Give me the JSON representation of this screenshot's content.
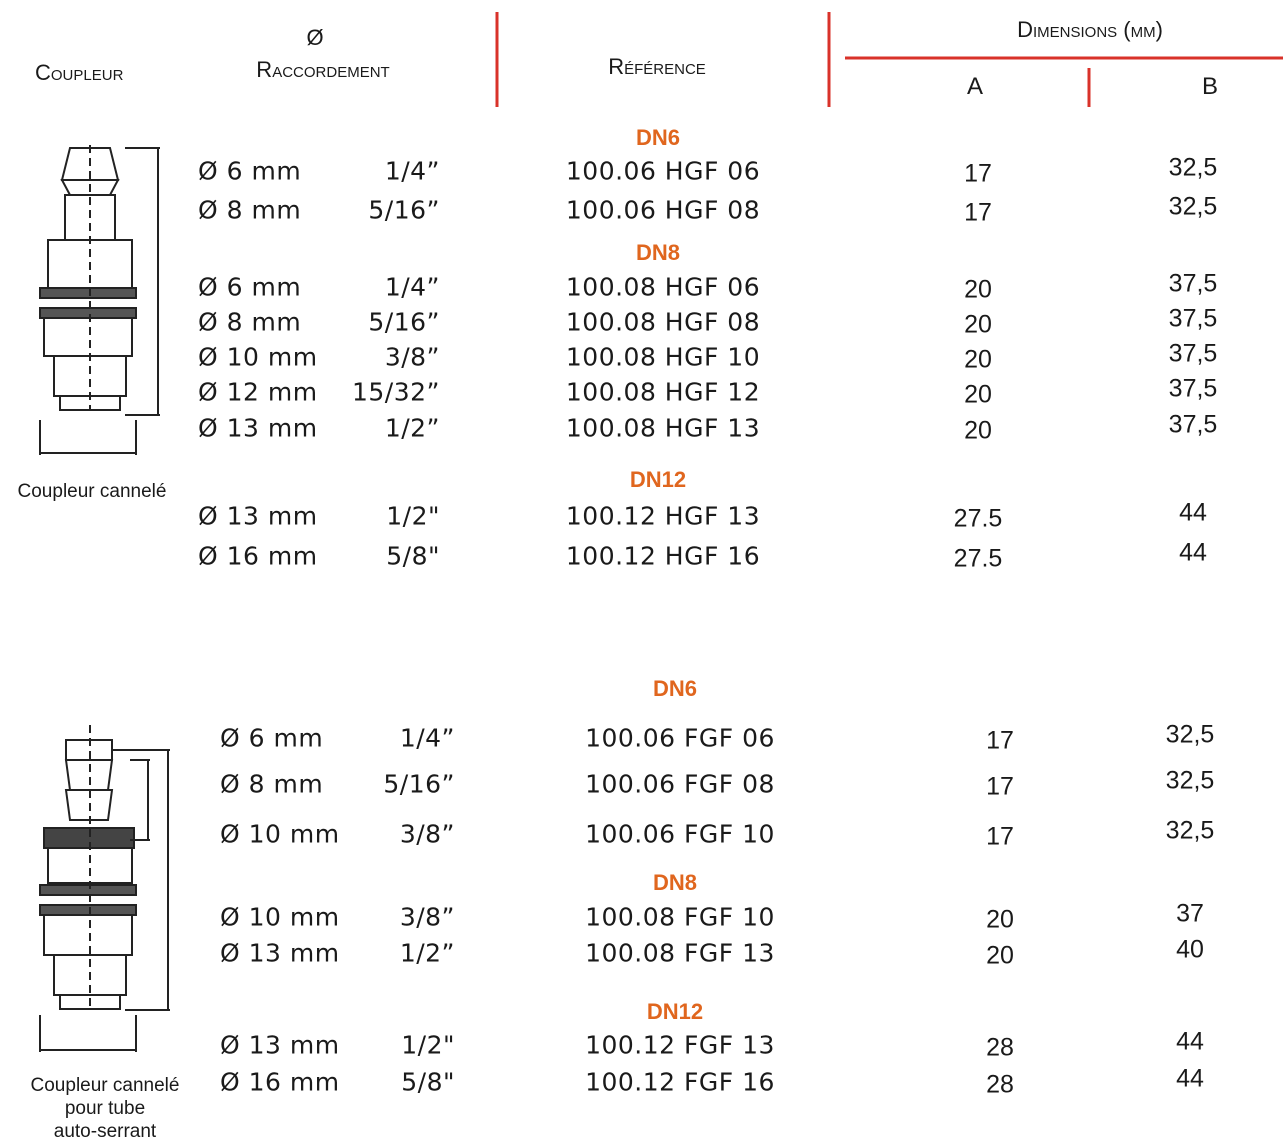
{
  "header": {
    "coupler": "Coupleur",
    "diameter": "Ø",
    "connection": "Raccordement",
    "reference": "Référence",
    "dimensions": "Dimensions (mm)",
    "a": "A",
    "b": "B"
  },
  "sections": [
    {
      "caption": [
        "Coupleur cannelé"
      ],
      "groups": [
        {
          "label": "DN6",
          "rows": [
            [
              "Ø 6 mm",
              "1/4”",
              "100.06 HGF 06",
              "17",
              "32,5"
            ],
            [
              "Ø 8 mm",
              "5/16”",
              "100.06 HGF 08",
              "17",
              "32,5"
            ]
          ]
        },
        {
          "label": "DN8",
          "rows": [
            [
              "Ø 6 mm",
              "1/4”",
              "100.08 HGF 06",
              "20",
              "37,5"
            ],
            [
              "Ø 8 mm",
              "5/16”",
              "100.08 HGF 08",
              "20",
              "37,5"
            ],
            [
              "Ø 10 mm",
              "3/8”",
              "100.08 HGF 10",
              "20",
              "37,5"
            ],
            [
              "Ø 12 mm",
              "15/32”",
              "100.08 HGF 12",
              "20",
              "37,5"
            ],
            [
              "Ø 13 mm",
              "1/2”",
              "100.08 HGF 13",
              "20",
              "37,5"
            ]
          ]
        },
        {
          "label": "DN12",
          "rows": [
            [
              "Ø 13 mm",
              "1/2\"",
              "100.12 HGF 13",
              "27.5",
              "44"
            ],
            [
              "Ø 16 mm",
              "5/8\"",
              "100.12 HGF 16",
              "27.5",
              "44"
            ]
          ]
        }
      ]
    },
    {
      "caption": [
        "Coupleur cannelé",
        "pour tube",
        "auto-serrant"
      ],
      "groups": [
        {
          "label": "DN6",
          "rows": [
            [
              "Ø 6 mm",
              "1/4”",
              "100.06 FGF 06",
              "17",
              "32,5"
            ],
            [
              "Ø 8 mm",
              "5/16”",
              "100.06 FGF 08",
              "17",
              "32,5"
            ],
            [
              "Ø 10 mm",
              "3/8”",
              "100.06 FGF 10",
              "17",
              "32,5"
            ]
          ]
        },
        {
          "label": "DN8",
          "rows": [
            [
              "Ø 10 mm",
              "3/8”",
              "100.08 FGF 10",
              "20",
              "37"
            ],
            [
              "Ø 13 mm",
              "1/2”",
              "100.08 FGF 13",
              "20",
              "40"
            ]
          ]
        },
        {
          "label": "DN12",
          "rows": [
            [
              "Ø 13 mm",
              "1/2\"",
              "100.12 FGF 13",
              "28",
              "44"
            ],
            [
              "Ø 16 mm",
              "5/8\"",
              "100.12 FGF 16",
              "28",
              "44"
            ]
          ]
        }
      ]
    }
  ]
}
